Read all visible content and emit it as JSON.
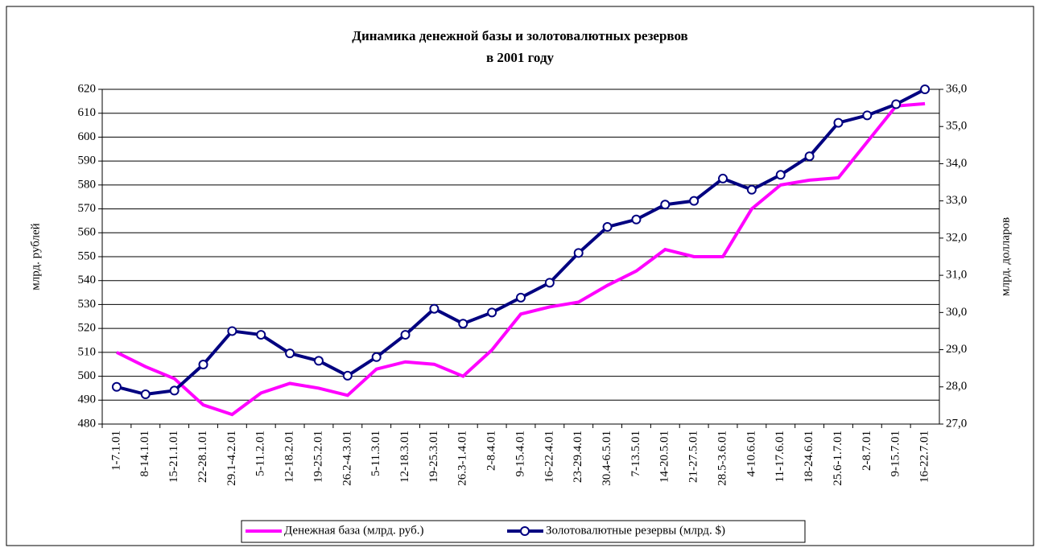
{
  "chart_data": {
    "type": "line",
    "title": [
      "Динамика денежной базы и золотовалютных резервов",
      "в 2001 году"
    ],
    "ylabel": "млрд. рублей",
    "y2label": "млрд. долларов",
    "categories": [
      "1-7.1.01",
      "8-14.1.01",
      "15-21.1.01",
      "22-28.1.01",
      "29.1-4.2.01",
      "5-11.2.01",
      "12-18.2.01",
      "19-25.2.01",
      "26.2-4.3.01",
      "5-11.3.01",
      "12-18.3.01",
      "19-25.3.01",
      "26.3-1.4.01",
      "2-8.4.01",
      "9-15.4.01",
      "16-22.4.01",
      "23-29.4.01",
      "30.4-6.5.01",
      "7-13.5.01",
      "14-20.5.01",
      "21-27.5.01",
      "28.5-3.6.01",
      "4-10.6.01",
      "11-17.6.01",
      "18-24.6.01",
      "25.6-1.7.01",
      "2-8.7.01",
      "9-15.7.01",
      "16-22.7.01"
    ],
    "series": [
      {
        "name": "Денежная база (млрд. руб.)",
        "color": "#ff00ff",
        "marker": false,
        "values": [
          510,
          504,
          499,
          488,
          484,
          493,
          497,
          495,
          492,
          503,
          506,
          505,
          500,
          511,
          526,
          529,
          531,
          538,
          544,
          553,
          550,
          550,
          570,
          580,
          582,
          583,
          598,
          613,
          614
        ]
      },
      {
        "name": "Золотовалютные резервы (млрд. $)",
        "color": "#000080",
        "marker": true,
        "axis": "y2",
        "values": [
          28.0,
          27.8,
          27.9,
          28.6,
          29.5,
          29.4,
          28.9,
          28.7,
          28.3,
          28.8,
          29.4,
          30.1,
          29.7,
          30.0,
          30.4,
          30.8,
          31.6,
          32.3,
          32.5,
          32.9,
          33.0,
          33.6,
          33.3,
          33.7,
          34.2,
          35.1,
          35.3,
          35.6,
          36.0
        ]
      }
    ],
    "ylim": [
      480,
      620
    ],
    "yticks": [
      480,
      490,
      500,
      510,
      520,
      530,
      540,
      550,
      560,
      570,
      580,
      590,
      600,
      610,
      620
    ],
    "y2lim": [
      27,
      36
    ],
    "y2ticks": [
      {
        "value": 27,
        "label": "27,0"
      },
      {
        "value": 28,
        "label": "28,0"
      },
      {
        "value": 29,
        "label": "29,0"
      },
      {
        "value": 30,
        "label": "30,0"
      },
      {
        "value": 31,
        "label": "31,0"
      },
      {
        "value": 32,
        "label": "32,0"
      },
      {
        "value": 33,
        "label": "33,0"
      },
      {
        "value": 34,
        "label": "34,0"
      },
      {
        "value": 35,
        "label": "35,0"
      },
      {
        "value": 36,
        "label": "36,0"
      }
    ],
    "grid": true,
    "legend": "bottom"
  }
}
